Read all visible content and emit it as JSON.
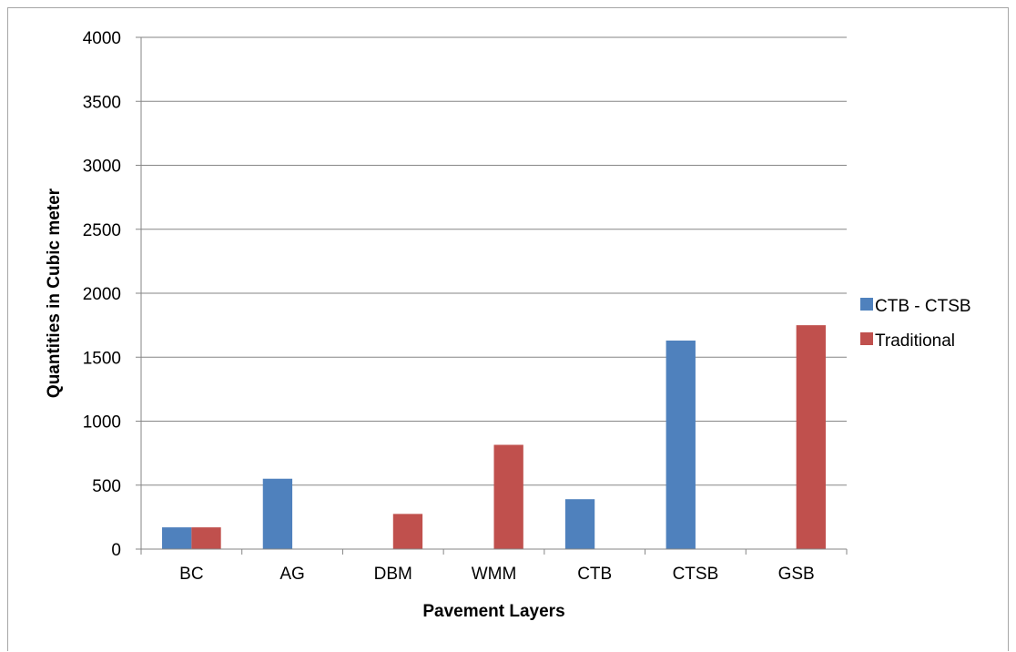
{
  "chart_data": {
    "type": "bar",
    "title": "",
    "xlabel": "Pavement Layers",
    "ylabel": "Quantities in Cubic meter",
    "categories": [
      "BC",
      "AG",
      "DBM",
      "WMM",
      "CTB",
      "CTSB",
      "GSB"
    ],
    "series": [
      {
        "name": "CTB - CTSB",
        "color": "#4f81bd",
        "values": [
          170,
          550,
          0,
          0,
          390,
          1630,
          0
        ]
      },
      {
        "name": "Traditional",
        "color": "#c0504d",
        "values": [
          170,
          0,
          275,
          815,
          0,
          0,
          1750
        ]
      }
    ],
    "ylim": [
      0,
      4000
    ],
    "yticks": [
      0,
      500,
      1000,
      1500,
      2000,
      2500,
      3000,
      3500,
      4000
    ],
    "grid": true,
    "legend_position": "right"
  }
}
